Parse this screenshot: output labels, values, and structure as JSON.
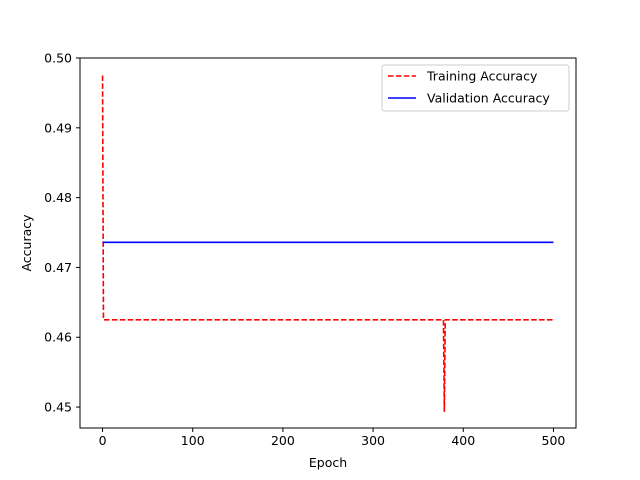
{
  "chart_data": {
    "type": "line",
    "title": "",
    "xlabel": "Epoch",
    "ylabel": "Accuracy",
    "xlim": [
      -25,
      525
    ],
    "ylim": [
      0.447,
      0.5
    ],
    "xticks": [
      0,
      100,
      200,
      300,
      400,
      500
    ],
    "yticks": [
      0.45,
      0.46,
      0.47,
      0.48,
      0.49,
      0.5
    ],
    "ytick_labels": [
      "0.45",
      "0.46",
      "0.47",
      "0.48",
      "0.49",
      "0.50"
    ],
    "grid": false,
    "legend_position": "top-right",
    "series": [
      {
        "name": "Training Accuracy",
        "color": "#ff0000",
        "line_style": "dashed",
        "x": [
          0,
          1,
          2,
          378,
          379,
          380,
          500
        ],
        "y": [
          0.4975,
          0.4625,
          0.4625,
          0.4625,
          0.4494,
          0.4625,
          0.4625
        ]
      },
      {
        "name": "Validation Accuracy",
        "color": "#0000ff",
        "line_style": "solid",
        "x": [
          0,
          500
        ],
        "y": [
          0.4736,
          0.4736
        ]
      }
    ]
  }
}
